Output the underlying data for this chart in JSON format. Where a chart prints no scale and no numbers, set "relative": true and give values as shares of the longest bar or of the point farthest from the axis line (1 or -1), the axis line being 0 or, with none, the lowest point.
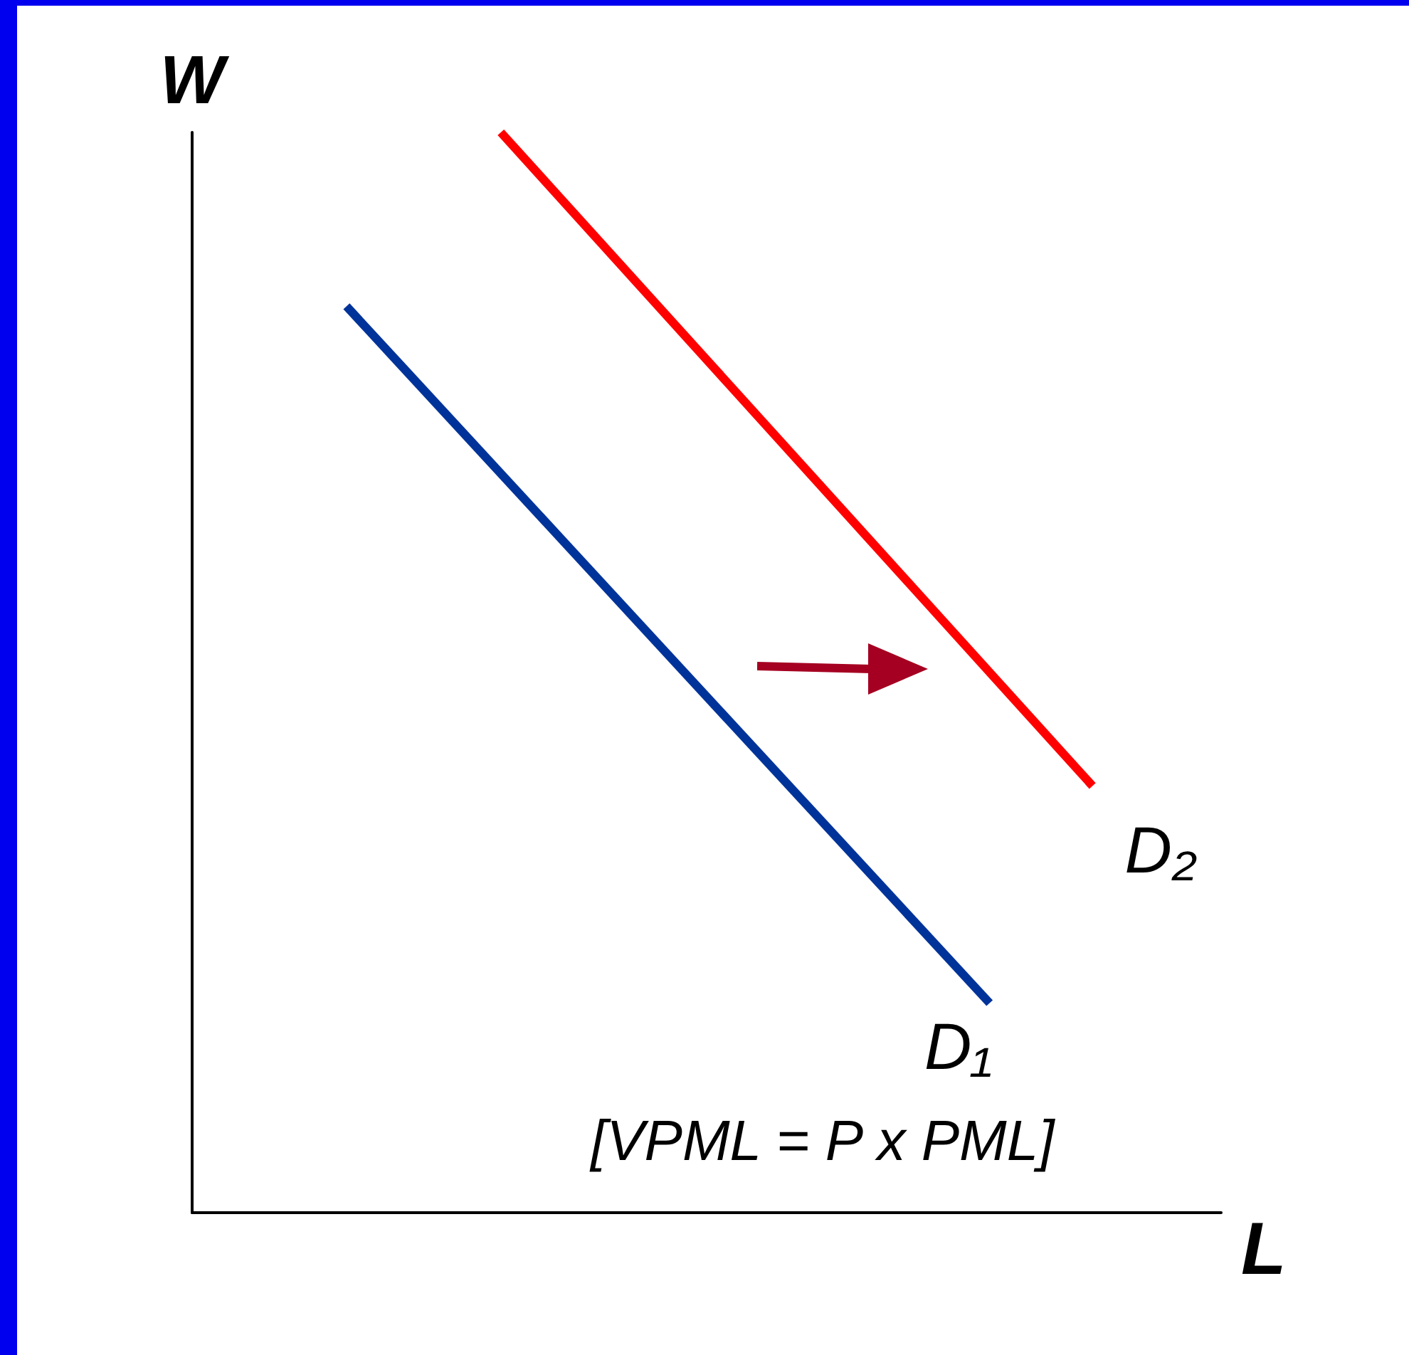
{
  "chart_data": {
    "type": "line",
    "relative": true,
    "xlabel": "L",
    "ylabel": "W",
    "grid": false,
    "legend": false,
    "marker": "none",
    "line_style": "solid",
    "categories": [
      null,
      null,
      null,
      null,
      null,
      null,
      null,
      null,
      null,
      null,
      null,
      null,
      null,
      null,
      null,
      null,
      null,
      null,
      null,
      null,
      null,
      null,
      null,
      null,
      null,
      null,
      null,
      null,
      null,
      null,
      null,
      null,
      null,
      null,
      null,
      null,
      null,
      null,
      null,
      null,
      null
    ],
    "series": [
      {
        "name": "D₁",
        "color": "#003399",
        "values": [
          null,
          null,
          null,
          null,
          null,
          null,
          0.839,
          null,
          null,
          null,
          null,
          null,
          null,
          null,
          null,
          null,
          null,
          null,
          null,
          null,
          null,
          null,
          null,
          null,
          null,
          null,
          null,
          null,
          null,
          null,
          null,
          0.194,
          null,
          null,
          null,
          null,
          null,
          null,
          null,
          null,
          null
        ]
      },
      {
        "name": "D₂",
        "color": "#ff0000",
        "values": [
          null,
          null,
          null,
          null,
          null,
          null,
          null,
          null,
          null,
          null,
          null,
          null,
          1,
          null,
          null,
          null,
          null,
          null,
          null,
          null,
          null,
          null,
          null,
          null,
          null,
          null,
          null,
          null,
          null,
          null,
          null,
          null,
          null,
          null,
          null,
          0.395,
          null,
          null,
          null,
          null,
          null
        ]
      }
    ],
    "annotations": [
      "[VPML = P x PML]"
    ]
  }
}
